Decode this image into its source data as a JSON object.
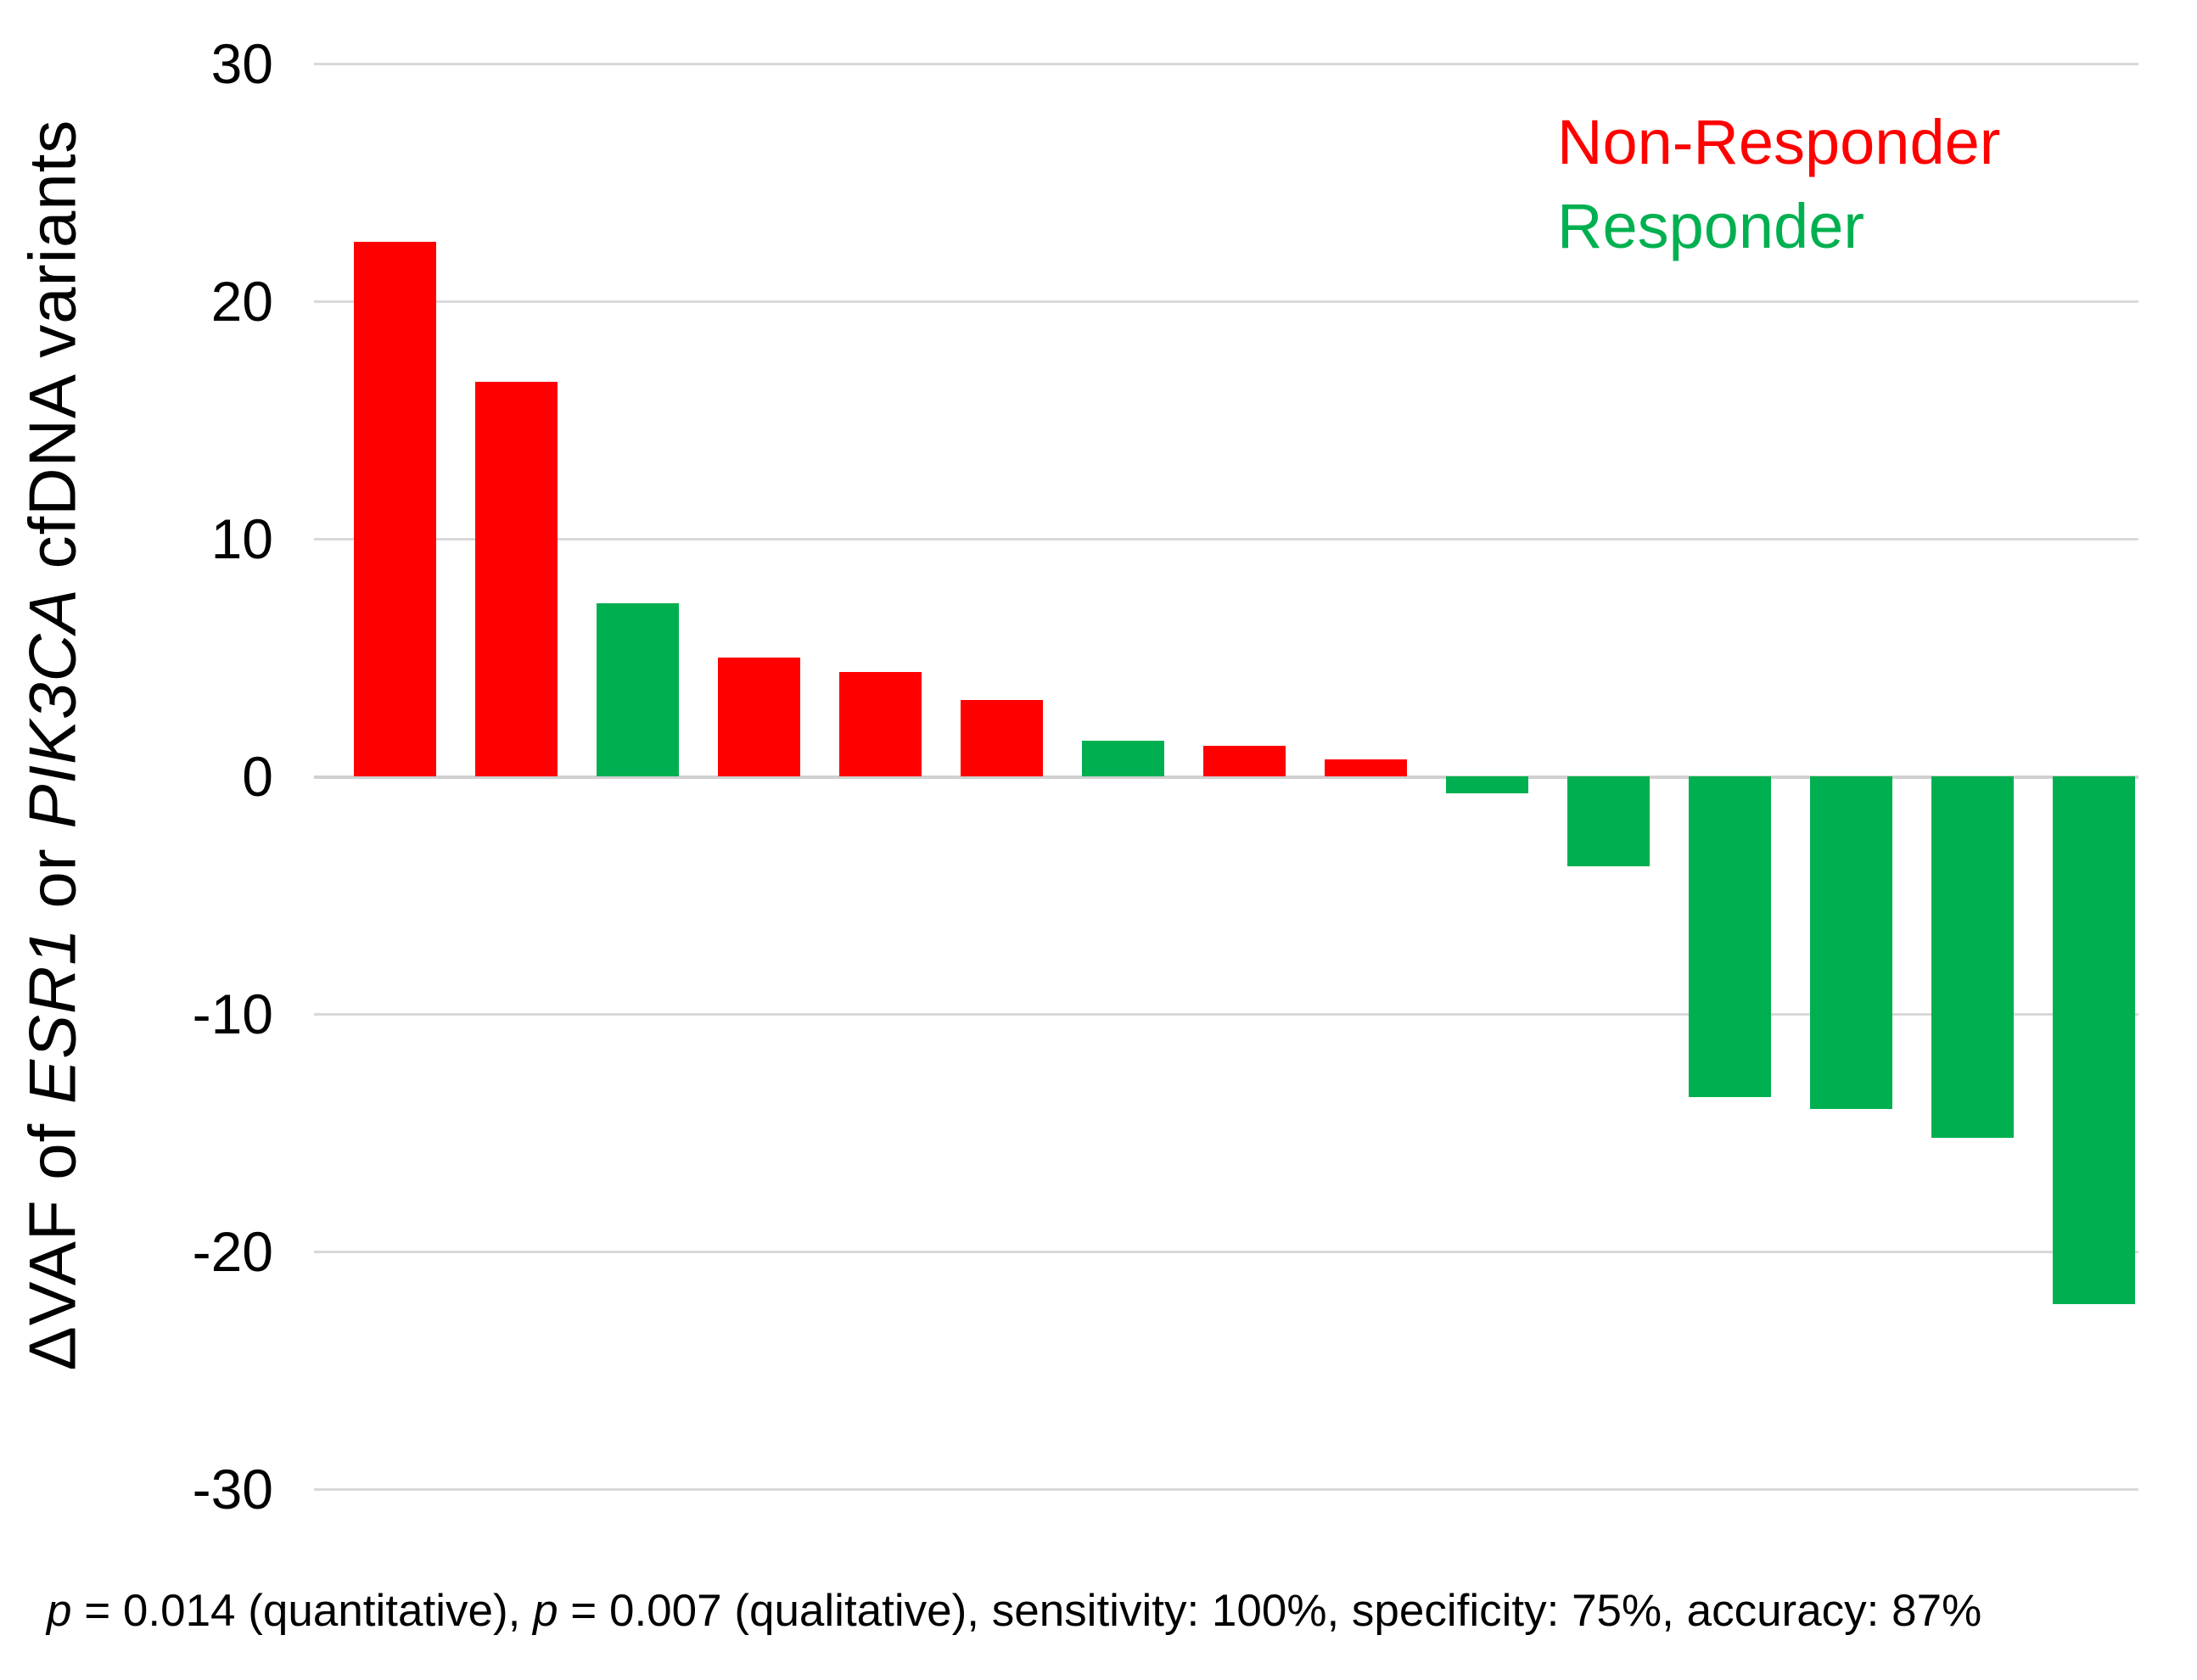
{
  "chart_data": {
    "type": "bar",
    "subtype": "waterfall-per-patient",
    "title": "",
    "xlabel": "",
    "ylabel": "ΔVAF of ESR1 or PIK3CA cfDNA variants",
    "ylabel_parts": [
      {
        "text": "ΔVAF of ",
        "italic": false
      },
      {
        "text": "ESR1",
        "italic": true
      },
      {
        "text": " or ",
        "italic": false
      },
      {
        "text": "PIK3CA",
        "italic": true
      },
      {
        "text": " cfDNA variants",
        "italic": false
      }
    ],
    "ylim": [
      -30,
      30
    ],
    "yticks": [
      30,
      20,
      10,
      0,
      -10,
      -20,
      -30
    ],
    "grid": true,
    "legend": {
      "position": "top-right",
      "entries": [
        {
          "label": "Non-Responder",
          "color": "#FF0000"
        },
        {
          "label": "Responder",
          "color": "#00B050"
        }
      ]
    },
    "bars": [
      {
        "value": 22.5,
        "group": "Non-Responder",
        "color": "#FF0000"
      },
      {
        "value": 16.6,
        "group": "Non-Responder",
        "color": "#FF0000"
      },
      {
        "value": 7.3,
        "group": "Responder",
        "color": "#00B050"
      },
      {
        "value": 5.0,
        "group": "Non-Responder",
        "color": "#FF0000"
      },
      {
        "value": 4.4,
        "group": "Non-Responder",
        "color": "#FF0000"
      },
      {
        "value": 3.2,
        "group": "Non-Responder",
        "color": "#FF0000"
      },
      {
        "value": 1.5,
        "group": "Responder",
        "color": "#00B050"
      },
      {
        "value": 1.3,
        "group": "Non-Responder",
        "color": "#FF0000"
      },
      {
        "value": 0.7,
        "group": "Non-Responder",
        "color": "#FF0000"
      },
      {
        "value": -0.7,
        "group": "Responder",
        "color": "#00B050"
      },
      {
        "value": -3.8,
        "group": "Responder",
        "color": "#00B050"
      },
      {
        "value": -13.5,
        "group": "Responder",
        "color": "#00B050"
      },
      {
        "value": -14.0,
        "group": "Responder",
        "color": "#00B050"
      },
      {
        "value": -15.2,
        "group": "Responder",
        "color": "#00B050"
      },
      {
        "value": -22.2,
        "group": "Responder",
        "color": "#00B050"
      }
    ],
    "annotation": "p = 0.014 (quantitative), p = 0.007 (qualitative), sensitivity: 100%, specificity: 75%, accuracy: 87%",
    "annotation_parts": [
      {
        "text": "p",
        "italic": true
      },
      {
        "text": " = 0.014 (quantitative), ",
        "italic": false
      },
      {
        "text": "p",
        "italic": true
      },
      {
        "text": " = 0.007 (qualitative), sensitivity: 100%, specificity: 75%, accuracy: 87%",
        "italic": false
      }
    ]
  },
  "colors": {
    "non_responder": "#FF0000",
    "responder": "#00B050",
    "gridline": "#D9D9D9",
    "text": "#000000",
    "background": "#FFFFFF"
  }
}
